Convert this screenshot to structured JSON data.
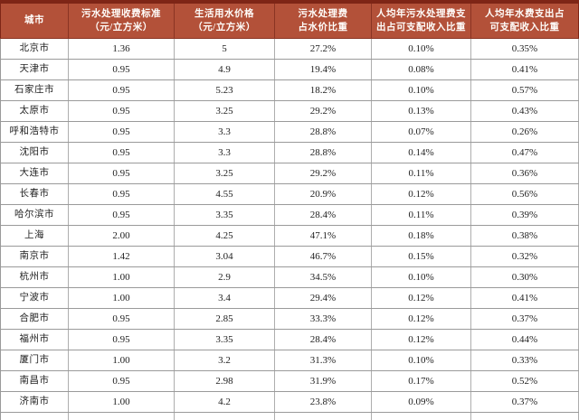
{
  "table": {
    "columns": [
      "城市",
      "污水处理收费标准\n（元/立方米）",
      "生活用水价格\n（元/立方米）",
      "污水处理费\n占水价比重",
      "人均年污水处理费支\n出占可支配收入比重",
      "人均年水费支出占\n可支配收入比重"
    ],
    "rows": [
      [
        "北京市",
        "1.36",
        "5",
        "27.2%",
        "0.10%",
        "0.35%"
      ],
      [
        "天津市",
        "0.95",
        "4.9",
        "19.4%",
        "0.08%",
        "0.41%"
      ],
      [
        "石家庄市",
        "0.95",
        "5.23",
        "18.2%",
        "0.10%",
        "0.57%"
      ],
      [
        "太原市",
        "0.95",
        "3.25",
        "29.2%",
        "0.13%",
        "0.43%"
      ],
      [
        "呼和浩特市",
        "0.95",
        "3.3",
        "28.8%",
        "0.07%",
        "0.26%"
      ],
      [
        "沈阳市",
        "0.95",
        "3.3",
        "28.8%",
        "0.14%",
        "0.47%"
      ],
      [
        "大连市",
        "0.95",
        "3.25",
        "29.2%",
        "0.11%",
        "0.36%"
      ],
      [
        "长春市",
        "0.95",
        "4.55",
        "20.9%",
        "0.12%",
        "0.56%"
      ],
      [
        "哈尔滨市",
        "0.95",
        "3.35",
        "28.4%",
        "0.11%",
        "0.39%"
      ],
      [
        "上海",
        "2.00",
        "4.25",
        "47.1%",
        "0.18%",
        "0.38%"
      ],
      [
        "南京市",
        "1.42",
        "3.04",
        "46.7%",
        "0.15%",
        "0.32%"
      ],
      [
        "杭州市",
        "1.00",
        "2.9",
        "34.5%",
        "0.10%",
        "0.30%"
      ],
      [
        "宁波市",
        "1.00",
        "3.4",
        "29.4%",
        "0.12%",
        "0.41%"
      ],
      [
        "合肥市",
        "0.95",
        "2.85",
        "33.3%",
        "0.12%",
        "0.37%"
      ],
      [
        "福州市",
        "0.95",
        "3.35",
        "28.4%",
        "0.12%",
        "0.44%"
      ],
      [
        "厦门市",
        "1.00",
        "3.2",
        "31.3%",
        "0.10%",
        "0.33%"
      ],
      [
        "南昌市",
        "0.95",
        "2.98",
        "31.9%",
        "0.17%",
        "0.52%"
      ],
      [
        "济南市",
        "1.00",
        "4.2",
        "23.8%",
        "0.09%",
        "0.37%"
      ]
    ]
  },
  "colors": {
    "header_bg": "#b35139",
    "header_top_border": "#7e2516",
    "header_text": "#fffdfa",
    "grid_line": "#9a9a9a",
    "body_text": "#222222"
  }
}
